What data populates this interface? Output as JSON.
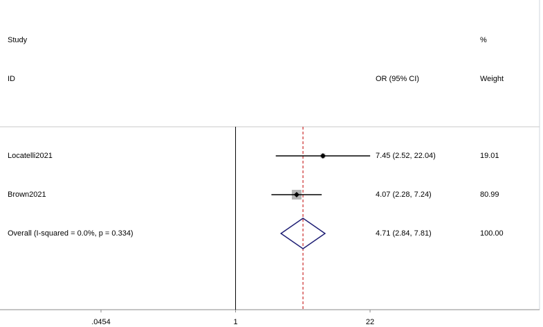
{
  "chart_data": {
    "type": "forest",
    "header": {
      "study": "Study",
      "id": "ID",
      "effect": "OR (95% CI)",
      "percent": "%",
      "weight": "Weight"
    },
    "categories": [
      "Locatelli2021",
      "Brown2021"
    ],
    "values": [
      7.45,
      4.07
    ],
    "lower": [
      2.52,
      2.28
    ],
    "upper": [
      22.04,
      7.24
    ],
    "ci_labels": [
      "7.45 (2.52, 22.04)",
      "4.07 (2.28, 7.24)"
    ],
    "weights": [
      19.01,
      80.99
    ],
    "overall": {
      "label": "Overall  (I-squared = 0.0%, p = 0.334)",
      "value": 4.71,
      "lower": 2.84,
      "upper": 7.81,
      "ci_label": "4.71 (2.84, 7.81)",
      "weight": 100,
      "weight_label": "100.00"
    },
    "xlim": [
      0.0454,
      22
    ],
    "xticks": [
      {
        "value": 0.0454,
        "label": ".0454"
      },
      1,
      22
    ],
    "log_x": true,
    "box_color": "#b4b4b4",
    "ci_color": "#000000",
    "diamond_color": "#1c1c73",
    "overall_line_color": "#c00000"
  }
}
